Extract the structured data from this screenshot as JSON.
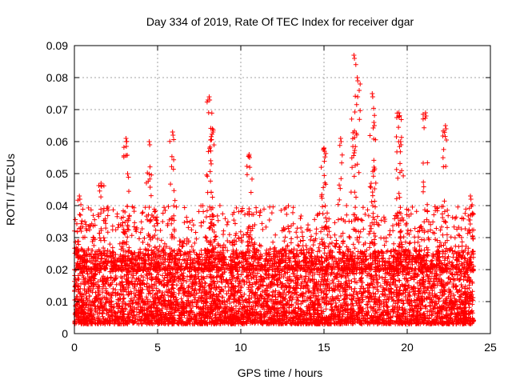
{
  "chart_data": {
    "type": "scatter",
    "title": "Day 334 of 2019, Rate Of TEC Index for receiver dgar",
    "xlabel": "GPS time / hours",
    "ylabel": "ROTI / TECUs",
    "xlim": [
      0,
      25
    ],
    "ylim": [
      0,
      0.09
    ],
    "xticks": [
      0,
      5,
      10,
      15,
      20,
      25
    ],
    "yticks": [
      0,
      0.01,
      0.02,
      0.03,
      0.04,
      0.05,
      0.06,
      0.07,
      0.08,
      0.09
    ],
    "xtick_labels": [
      "0",
      "5",
      "10",
      "15",
      "20",
      "25"
    ],
    "ytick_labels": [
      "0",
      "0.01",
      "0.02",
      "0.03",
      "0.04",
      "0.05",
      "0.06",
      "0.07",
      "0.08",
      "0.09"
    ],
    "grid": true,
    "marker": "plus",
    "color": "#ff0000",
    "series": [
      {
        "x_range": [
          0,
          24
        ],
        "baseline_band": [
          0.003,
          0.025
        ],
        "peaks": [
          {
            "x": 0.3,
            "y": 0.043
          },
          {
            "x": 1.6,
            "y": 0.047
          },
          {
            "x": 3.1,
            "y": 0.061
          },
          {
            "x": 4.5,
            "y": 0.06
          },
          {
            "x": 5.9,
            "y": 0.063
          },
          {
            "x": 8.1,
            "y": 0.074
          },
          {
            "x": 8.3,
            "y": 0.064
          },
          {
            "x": 10.5,
            "y": 0.056
          },
          {
            "x": 15.0,
            "y": 0.058
          },
          {
            "x": 16.0,
            "y": 0.061
          },
          {
            "x": 16.8,
            "y": 0.087
          },
          {
            "x": 17.0,
            "y": 0.08
          },
          {
            "x": 17.9,
            "y": 0.075
          },
          {
            "x": 18.0,
            "y": 0.066
          },
          {
            "x": 19.5,
            "y": 0.069
          },
          {
            "x": 19.6,
            "y": 0.06
          },
          {
            "x": 21.1,
            "y": 0.069
          },
          {
            "x": 22.3,
            "y": 0.065
          },
          {
            "x": 23.8,
            "y": 0.043
          }
        ]
      }
    ]
  }
}
